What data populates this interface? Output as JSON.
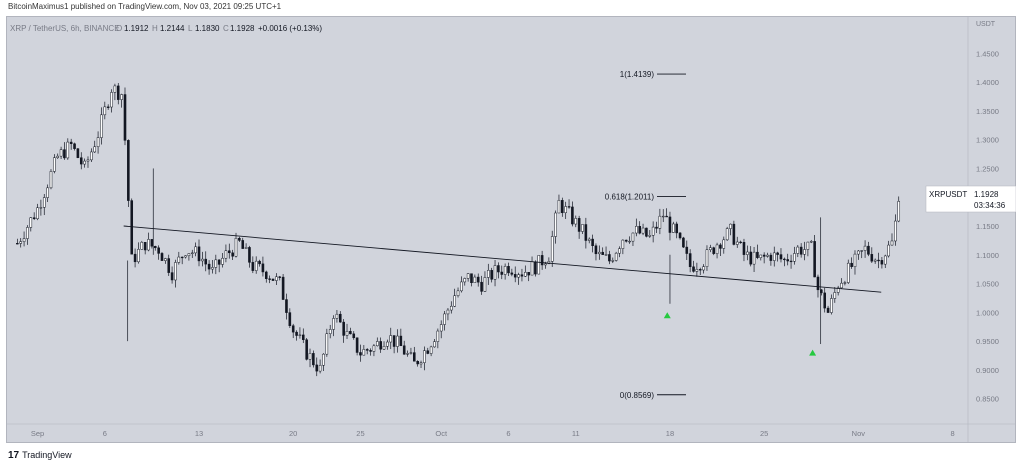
{
  "header": {
    "text": "BitcoinMaximus1 published on TradingView.com, Nov 03, 2021 09:25 UTC+1"
  },
  "footer": {
    "logo": "17",
    "brand": "TradingView"
  },
  "legend": {
    "symbol": "XRP / TetherUS, 6h, BINANCE",
    "open": "1.1912",
    "high": "1.2144",
    "low": "1.1830",
    "close": "1.1928",
    "change": "+0.0016 (+0.13%)"
  },
  "price_tag": {
    "symbol": "XRPUSDT",
    "price": "1.1928",
    "countdown": "03:34:36"
  },
  "colors": {
    "background": "#d1d4dc",
    "up": "#ffffff",
    "down": "#131722",
    "marker": "#26c940"
  },
  "chart_data": {
    "type": "candlestick",
    "symbol": "XRPUSDT",
    "timeframe": "6h",
    "exchange": "BINANCE",
    "y_axis_title": "USDT",
    "ylim": [
      0.82,
      1.48
    ],
    "y_ticks": [
      "1.4500",
      "1.4000",
      "1.3500",
      "1.3000",
      "1.2500",
      "1.2000",
      "1.1500",
      "1.1000",
      "1.0500",
      "1.0000",
      "0.9500",
      "0.9000",
      "0.8500"
    ],
    "x_ticks": [
      {
        "label": "Sep",
        "day": 0
      },
      {
        "label": "6",
        "day": 5
      },
      {
        "label": "13",
        "day": 12
      },
      {
        "label": "20",
        "day": 19
      },
      {
        "label": "25",
        "day": 24
      },
      {
        "label": "Oct",
        "day": 30
      },
      {
        "label": "6",
        "day": 35
      },
      {
        "label": "11",
        "day": 40
      },
      {
        "label": "18",
        "day": 47
      },
      {
        "label": "25",
        "day": 54
      },
      {
        "label": "Nov",
        "day": 61
      },
      {
        "label": "8",
        "day": 68
      }
    ],
    "price_path": [
      {
        "day": -1.5,
        "price": 1.12
      },
      {
        "day": 0,
        "price": 1.18
      },
      {
        "day": 1.5,
        "price": 1.27
      },
      {
        "day": 2.5,
        "price": 1.29
      },
      {
        "day": 3.5,
        "price": 1.25
      },
      {
        "day": 4.5,
        "price": 1.31
      },
      {
        "day": 5.5,
        "price": 1.39
      },
      {
        "day": 6.25,
        "price": 1.38
      },
      {
        "day": 6.5,
        "price": 1.3
      },
      {
        "day": 7,
        "price": 1.09
      },
      {
        "day": 8,
        "price": 1.12
      },
      {
        "day": 9,
        "price": 1.11
      },
      {
        "day": 10,
        "price": 1.07
      },
      {
        "day": 11,
        "price": 1.11
      },
      {
        "day": 12,
        "price": 1.1
      },
      {
        "day": 13,
        "price": 1.07
      },
      {
        "day": 14,
        "price": 1.1
      },
      {
        "day": 15,
        "price": 1.12
      },
      {
        "day": 16,
        "price": 1.08
      },
      {
        "day": 17,
        "price": 1.07
      },
      {
        "day": 18,
        "price": 1.05
      },
      {
        "day": 19,
        "price": 0.97
      },
      {
        "day": 20,
        "price": 0.93
      },
      {
        "day": 21,
        "price": 0.9
      },
      {
        "day": 22,
        "price": 1.0
      },
      {
        "day": 23,
        "price": 0.96
      },
      {
        "day": 24,
        "price": 0.93
      },
      {
        "day": 25,
        "price": 0.94
      },
      {
        "day": 26,
        "price": 0.96
      },
      {
        "day": 27,
        "price": 0.94
      },
      {
        "day": 28,
        "price": 0.91
      },
      {
        "day": 29,
        "price": 0.94
      },
      {
        "day": 30,
        "price": 0.98
      },
      {
        "day": 31,
        "price": 1.03
      },
      {
        "day": 32,
        "price": 1.06
      },
      {
        "day": 33,
        "price": 1.05
      },
      {
        "day": 34,
        "price": 1.07
      },
      {
        "day": 35,
        "price": 1.08
      },
      {
        "day": 36,
        "price": 1.07
      },
      {
        "day": 37,
        "price": 1.08
      },
      {
        "day": 38,
        "price": 1.1
      },
      {
        "day": 38.75,
        "price": 1.19
      },
      {
        "day": 39.5,
        "price": 1.17
      },
      {
        "day": 40.5,
        "price": 1.14
      },
      {
        "day": 41.5,
        "price": 1.1
      },
      {
        "day": 42.5,
        "price": 1.09
      },
      {
        "day": 43.5,
        "price": 1.13
      },
      {
        "day": 44.5,
        "price": 1.14
      },
      {
        "day": 45.5,
        "price": 1.13
      },
      {
        "day": 46.5,
        "price": 1.17
      },
      {
        "day": 47.5,
        "price": 1.13
      },
      {
        "day": 48.5,
        "price": 1.08
      },
      {
        "day": 49.5,
        "price": 1.09
      },
      {
        "day": 50.5,
        "price": 1.12
      },
      {
        "day": 51.5,
        "price": 1.14
      },
      {
        "day": 52.5,
        "price": 1.1
      },
      {
        "day": 53.5,
        "price": 1.09
      },
      {
        "day": 54.5,
        "price": 1.1
      },
      {
        "day": 55.5,
        "price": 1.09
      },
      {
        "day": 56.5,
        "price": 1.11
      },
      {
        "day": 57.5,
        "price": 1.11
      },
      {
        "day": 58,
        "price": 1.04
      },
      {
        "day": 58.75,
        "price": 1.0
      },
      {
        "day": 59.5,
        "price": 1.05
      },
      {
        "day": 60.5,
        "price": 1.08
      },
      {
        "day": 61.5,
        "price": 1.11
      },
      {
        "day": 62.5,
        "price": 1.09
      },
      {
        "day": 63.5,
        "price": 1.12
      },
      {
        "day": 64,
        "price": 1.19
      }
    ],
    "trendline": {
      "start": {
        "day": 6.4,
        "price": 1.15
      },
      "end": {
        "day": 62.7,
        "price": 1.035
      }
    },
    "fib_levels": [
      {
        "label": "1(1.4139)",
        "price": 1.4139
      },
      {
        "label": "0.618(1.2011)",
        "price": 1.2011
      },
      {
        "label": "0(0.8569)",
        "price": 0.8569
      }
    ],
    "markers": [
      {
        "type": "up-triangle",
        "day": 46.8,
        "price": 0.995
      },
      {
        "type": "up-triangle",
        "day": 57.6,
        "price": 0.93
      }
    ],
    "last_price": 1.1928
  }
}
